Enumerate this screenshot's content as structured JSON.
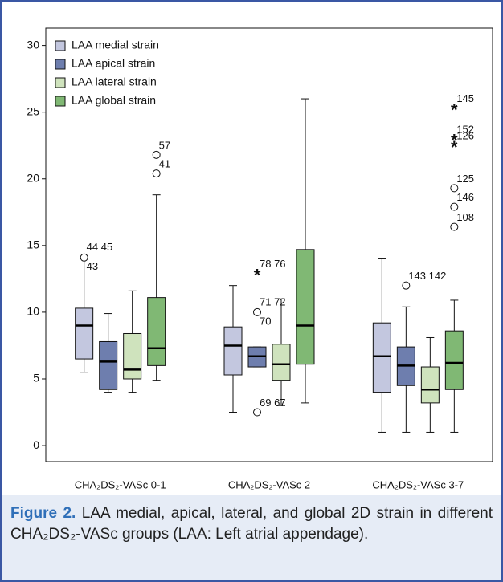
{
  "chart_data": {
    "type": "box",
    "categories": [
      "CHA₂DS₂-VASc 0-1",
      "CHA₂DS₂-VASc 2",
      "CHA₂DS₂-VASc 3-7"
    ],
    "ylim": [
      -1.2,
      31.3
    ],
    "yticks": [
      0,
      5,
      10,
      15,
      20,
      25,
      30
    ],
    "legend": "top-left",
    "series": [
      {
        "name": "LAA medial strain",
        "color": "#c3c7df",
        "values": [
          {
            "min": 5.5,
            "q1": 6.5,
            "median": 9.0,
            "q3": 10.3,
            "max": 14.0
          },
          {
            "min": 2.5,
            "q1": 5.3,
            "median": 7.5,
            "q3": 8.9,
            "max": 12.0
          },
          {
            "min": 1.0,
            "q1": 4.0,
            "median": 6.7,
            "q3": 9.2,
            "max": 14.0
          }
        ],
        "outliers": [
          [
            {
              "value": 14.1,
              "marker": "circle",
              "labels": [
                "44 45",
                "43"
              ]
            }
          ],
          [],
          []
        ]
      },
      {
        "name": "LAA apical strain",
        "color": "#6e7eae",
        "values": [
          {
            "min": 4.0,
            "q1": 4.2,
            "median": 6.3,
            "q3": 7.8,
            "max": 9.9
          },
          {
            "min": 5.9,
            "q1": 5.9,
            "median": 6.7,
            "q3": 7.4,
            "max": 7.4
          },
          {
            "min": 1.0,
            "q1": 4.5,
            "median": 6.0,
            "q3": 7.4,
            "max": 10.4
          }
        ],
        "outliers": [
          [],
          [
            {
              "value": 12.9,
              "marker": "star",
              "labels": [
                "78 76"
              ]
            },
            {
              "value": 10.0,
              "marker": "circle",
              "labels": [
                "71 72",
                "70"
              ]
            },
            {
              "value": 2.5,
              "marker": "circle",
              "labels": [
                "69 67"
              ]
            }
          ],
          [
            {
              "value": 12.0,
              "marker": "circle",
              "labels": [
                "143 142"
              ]
            }
          ]
        ]
      },
      {
        "name": "LAA lateral strain",
        "color": "#cfe3bd",
        "values": [
          {
            "min": 4.0,
            "q1": 5.0,
            "median": 5.7,
            "q3": 8.4,
            "max": 11.6
          },
          {
            "min": 3.0,
            "q1": 4.9,
            "median": 6.1,
            "q3": 7.6,
            "max": 11.0
          },
          {
            "min": 1.0,
            "q1": 3.2,
            "median": 4.2,
            "q3": 5.9,
            "max": 8.1
          }
        ],
        "outliers": [
          [],
          [],
          []
        ]
      },
      {
        "name": "LAA global strain",
        "color": "#80b874",
        "values": [
          {
            "min": 4.9,
            "q1": 6.0,
            "median": 7.3,
            "q3": 11.1,
            "max": 18.8
          },
          {
            "min": 3.2,
            "q1": 6.1,
            "median": 9.0,
            "q3": 14.7,
            "max": 26.0
          },
          {
            "min": 1.0,
            "q1": 4.2,
            "median": 6.2,
            "q3": 8.6,
            "max": 10.9
          }
        ],
        "outliers": [
          [
            {
              "value": 21.8,
              "marker": "circle",
              "labels": [
                "57"
              ]
            },
            {
              "value": 20.4,
              "marker": "circle",
              "labels": [
                "41"
              ]
            }
          ],
          [],
          [
            {
              "value": 25.3,
              "marker": "star",
              "labels": [
                "145"
              ]
            },
            {
              "value": 23.0,
              "marker": "star",
              "labels": [
                "152"
              ]
            },
            {
              "value": 22.5,
              "marker": "star",
              "labels": [
                "126"
              ]
            },
            {
              "value": 19.3,
              "marker": "circle",
              "labels": [
                "125"
              ]
            },
            {
              "value": 17.9,
              "marker": "circle",
              "labels": [
                "146"
              ]
            },
            {
              "value": 16.4,
              "marker": "circle",
              "labels": [
                "108"
              ]
            }
          ]
        ]
      }
    ]
  },
  "caption": {
    "label": "Figure 2.",
    "text": "LAA medial, apical, lateral, and global 2D strain in different CHA₂DS₂-VASc groups (LAA: Left atrial appendage)."
  }
}
